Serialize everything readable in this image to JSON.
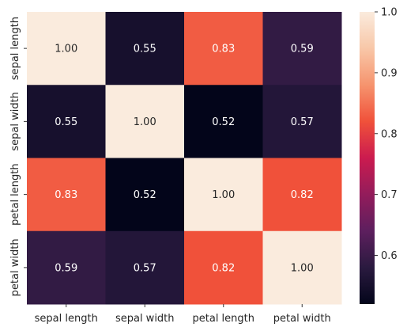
{
  "chart_data": {
    "type": "heatmap",
    "title": "",
    "xlabel": "",
    "ylabel": "",
    "x_categories": [
      "sepal length",
      "sepal width",
      "petal length",
      "petal width"
    ],
    "y_categories": [
      "sepal length",
      "sepal width",
      "petal length",
      "petal width"
    ],
    "values": [
      [
        1.0,
        0.55,
        0.83,
        0.59
      ],
      [
        0.55,
        1.0,
        0.52,
        0.57
      ],
      [
        0.83,
        0.52,
        1.0,
        0.82
      ],
      [
        0.59,
        0.57,
        0.82,
        1.0
      ]
    ],
    "annotations": [
      [
        "1.00",
        "0.55",
        "0.83",
        "0.59"
      ],
      [
        "0.55",
        "1.00",
        "0.52",
        "0.57"
      ],
      [
        "0.83",
        "0.52",
        "1.00",
        "0.82"
      ],
      [
        "0.59",
        "0.57",
        "0.82",
        "1.00"
      ]
    ],
    "colorbar": {
      "min": 0.52,
      "max": 1.0,
      "ticks": [
        0.6,
        0.7,
        0.8,
        0.9,
        1.0
      ],
      "tick_labels": [
        "0.6",
        "0.7",
        "0.8",
        "0.9",
        "1.0"
      ],
      "colormap": "rocket",
      "colormap_stops": [
        "#03051a",
        "#2a1a3f",
        "#5d1f5e",
        "#931c5b",
        "#cb1b4f",
        "#f0513a",
        "#f6946e",
        "#f8c7a8",
        "#faebdd"
      ]
    },
    "grid": false
  }
}
